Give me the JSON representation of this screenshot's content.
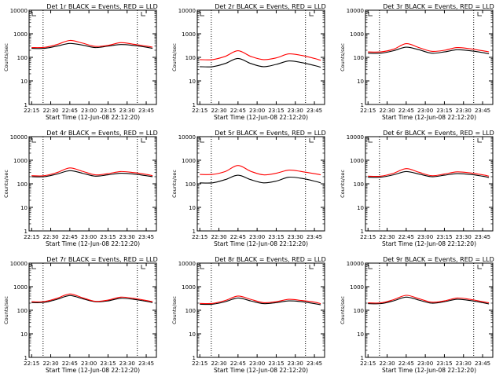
{
  "figure": {
    "xlabel": "Start Time (12-Jun-08 22:12:20)",
    "ylabel": "Counts/sec",
    "xticks": [
      "22:15",
      "22:30",
      "22:45",
      "23:00",
      "23:15",
      "23:30",
      "23:45"
    ],
    "yticks": [
      "1",
      "10",
      "100",
      "1000",
      "10000"
    ],
    "colors": {
      "events": "#000000",
      "lld": "#ff0000"
    }
  },
  "chart_data": [
    {
      "type": "line",
      "title": "Det 1r BLACK = Events, RED = LLD",
      "x": [
        "22:15",
        "22:25",
        "22:35",
        "22:45",
        "22:55",
        "23:05",
        "23:15",
        "23:25",
        "23:35",
        "23:45",
        "23:50"
      ],
      "series": [
        {
          "name": "Events",
          "values": [
            240,
            240,
            300,
            390,
            330,
            260,
            300,
            350,
            320,
            270,
            240
          ]
        },
        {
          "name": "LLD",
          "values": [
            260,
            265,
            350,
            520,
            400,
            290,
            320,
            420,
            360,
            300,
            270
          ]
        }
      ],
      "ylim": [
        1,
        10000
      ],
      "yscale": "log",
      "grid": false,
      "legend": "none"
    },
    {
      "type": "line",
      "title": "Det 2r BLACK = Events, RED = LLD",
      "x": [
        "22:15",
        "22:25",
        "22:35",
        "22:45",
        "22:55",
        "23:05",
        "23:15",
        "23:25",
        "23:35",
        "23:45",
        "23:50"
      ],
      "series": [
        {
          "name": "Events",
          "values": [
            40,
            40,
            55,
            90,
            55,
            40,
            50,
            70,
            60,
            45,
            38
          ]
        },
        {
          "name": "LLD",
          "values": [
            80,
            80,
            110,
            190,
            110,
            80,
            95,
            140,
            120,
            90,
            75
          ]
        }
      ],
      "ylim": [
        1,
        10000
      ],
      "yscale": "log",
      "grid": false,
      "legend": "none"
    },
    {
      "type": "line",
      "title": "Det 3r BLACK = Events, RED = LLD",
      "x": [
        "22:15",
        "22:25",
        "22:35",
        "22:45",
        "22:55",
        "23:05",
        "23:15",
        "23:25",
        "23:35",
        "23:45",
        "23:50"
      ],
      "series": [
        {
          "name": "Events",
          "values": [
            150,
            150,
            190,
            270,
            210,
            150,
            170,
            210,
            190,
            160,
            140
          ]
        },
        {
          "name": "LLD",
          "values": [
            170,
            170,
            220,
            380,
            260,
            180,
            200,
            260,
            230,
            190,
            170
          ]
        }
      ],
      "ylim": [
        1,
        10000
      ],
      "yscale": "log",
      "grid": false,
      "legend": "none"
    },
    {
      "type": "line",
      "title": "Det 4r BLACK = Events, RED = LLD",
      "x": [
        "22:15",
        "22:25",
        "22:35",
        "22:45",
        "22:55",
        "23:05",
        "23:15",
        "23:25",
        "23:35",
        "23:45",
        "23:50"
      ],
      "series": [
        {
          "name": "Events",
          "values": [
            200,
            200,
            260,
            360,
            280,
            210,
            240,
            280,
            260,
            220,
            200
          ]
        },
        {
          "name": "LLD",
          "values": [
            220,
            220,
            300,
            470,
            340,
            240,
            270,
            330,
            300,
            250,
            220
          ]
        }
      ],
      "ylim": [
        1,
        10000
      ],
      "yscale": "log",
      "grid": false,
      "legend": "none"
    },
    {
      "type": "line",
      "title": "Det 5r BLACK = Events, RED = LLD",
      "x": [
        "22:15",
        "22:25",
        "22:35",
        "22:45",
        "22:55",
        "23:05",
        "23:15",
        "23:25",
        "23:35",
        "23:45",
        "23:50"
      ],
      "series": [
        {
          "name": "Events",
          "values": [
            110,
            110,
            150,
            230,
            150,
            110,
            130,
            190,
            170,
            130,
            110
          ]
        },
        {
          "name": "LLD",
          "values": [
            250,
            250,
            330,
            600,
            340,
            240,
            280,
            380,
            330,
            270,
            240
          ]
        }
      ],
      "ylim": [
        1,
        10000
      ],
      "yscale": "log",
      "grid": false,
      "legend": "none"
    },
    {
      "type": "line",
      "title": "Det 6r BLACK = Events, RED = LLD",
      "x": [
        "22:15",
        "22:25",
        "22:35",
        "22:45",
        "22:55",
        "23:05",
        "23:15",
        "23:25",
        "23:35",
        "23:45",
        "23:50"
      ],
      "series": [
        {
          "name": "Events",
          "values": [
            190,
            190,
            240,
            330,
            260,
            200,
            230,
            270,
            250,
            210,
            185
          ]
        },
        {
          "name": "LLD",
          "values": [
            210,
            210,
            280,
            440,
            310,
            220,
            260,
            320,
            290,
            240,
            210
          ]
        }
      ],
      "ylim": [
        1,
        10000
      ],
      "yscale": "log",
      "grid": false,
      "legend": "none"
    },
    {
      "type": "line",
      "title": "Det 7r BLACK = Events, RED = LLD",
      "x": [
        "22:15",
        "22:25",
        "22:35",
        "22:45",
        "22:55",
        "23:05",
        "23:15",
        "23:25",
        "23:35",
        "23:45",
        "23:50"
      ],
      "series": [
        {
          "name": "Events",
          "values": [
            210,
            215,
            290,
            420,
            310,
            230,
            250,
            320,
            290,
            240,
            210
          ]
        },
        {
          "name": "LLD",
          "values": [
            230,
            235,
            320,
            490,
            340,
            240,
            270,
            360,
            320,
            260,
            230
          ]
        }
      ],
      "ylim": [
        1,
        10000
      ],
      "yscale": "log",
      "grid": false,
      "legend": "none"
    },
    {
      "type": "line",
      "title": "Det 8r BLACK = Events, RED = LLD",
      "x": [
        "22:15",
        "22:25",
        "22:35",
        "22:45",
        "22:55",
        "23:05",
        "23:15",
        "23:25",
        "23:35",
        "23:45",
        "23:50"
      ],
      "series": [
        {
          "name": "Events",
          "values": [
            180,
            180,
            230,
            330,
            250,
            190,
            210,
            250,
            230,
            190,
            170
          ]
        },
        {
          "name": "LLD",
          "values": [
            195,
            195,
            260,
            400,
            290,
            210,
            230,
            290,
            260,
            220,
            190
          ]
        }
      ],
      "ylim": [
        1,
        10000
      ],
      "yscale": "log",
      "grid": false,
      "legend": "none"
    },
    {
      "type": "line",
      "title": "Det 9r BLACK = Events, RED = LLD",
      "x": [
        "22:15",
        "22:25",
        "22:35",
        "22:45",
        "22:55",
        "23:05",
        "23:15",
        "23:25",
        "23:35",
        "23:45",
        "23:50"
      ],
      "series": [
        {
          "name": "Events",
          "values": [
            190,
            190,
            250,
            360,
            270,
            200,
            230,
            290,
            260,
            210,
            185
          ]
        },
        {
          "name": "LLD",
          "values": [
            205,
            205,
            280,
            430,
            310,
            220,
            250,
            330,
            290,
            230,
            205
          ]
        }
      ],
      "ylim": [
        1,
        10000
      ],
      "yscale": "log",
      "grid": false,
      "legend": "none"
    }
  ]
}
